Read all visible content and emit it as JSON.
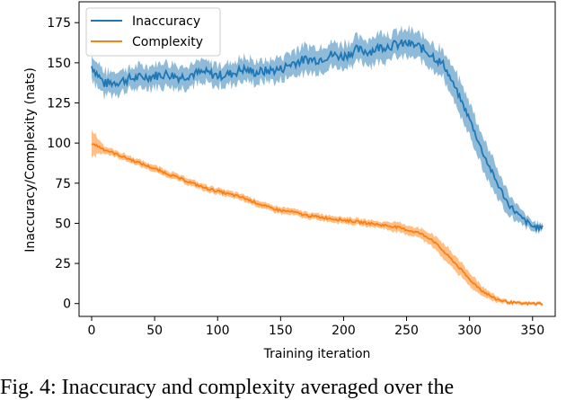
{
  "chart_data": {
    "type": "line",
    "title": "",
    "xlabel": "Training iteration",
    "ylabel": "Inaccuracy/Complexity (nats)",
    "xlim": [
      -10,
      368
    ],
    "ylim": [
      -8,
      188
    ],
    "xticks": [
      0,
      50,
      100,
      150,
      200,
      250,
      300,
      350
    ],
    "yticks": [
      0,
      25,
      50,
      75,
      100,
      125,
      150,
      175
    ],
    "grid": false,
    "legend_position": "top-left",
    "x": [
      0,
      10,
      20,
      30,
      40,
      50,
      60,
      70,
      80,
      90,
      100,
      110,
      120,
      130,
      140,
      150,
      160,
      170,
      180,
      190,
      200,
      210,
      220,
      230,
      240,
      250,
      260,
      270,
      280,
      290,
      300,
      310,
      320,
      330,
      340,
      350,
      358
    ],
    "series": [
      {
        "name": "Inaccuracy",
        "color": "#1f77b4",
        "values": [
          148,
          137,
          138,
          140,
          141,
          142,
          143,
          141,
          143,
          144,
          142,
          143,
          146,
          144,
          145,
          146,
          150,
          152,
          152,
          155,
          154,
          158,
          157,
          160,
          161,
          162,
          160,
          155,
          148,
          132,
          115,
          95,
          78,
          63,
          54,
          48,
          47
        ],
        "spread": [
          8,
          7,
          7,
          7,
          7,
          7,
          7,
          7,
          7,
          7,
          7,
          7,
          7,
          7,
          7,
          7,
          8,
          8,
          8,
          8,
          8,
          8,
          8,
          8,
          8,
          8,
          8,
          8,
          9,
          10,
          10,
          10,
          9,
          7,
          5,
          3,
          2
        ]
      },
      {
        "name": "Complexity",
        "color": "#ff7f0e",
        "values": [
          100,
          96,
          93,
          90,
          87,
          84,
          81,
          78,
          75,
          72,
          70,
          68,
          66,
          63,
          60,
          58,
          57,
          55,
          54,
          53,
          52,
          51,
          50,
          49,
          48,
          46,
          44,
          40,
          32,
          24,
          15,
          8,
          3,
          1,
          0,
          0,
          0
        ],
        "spread": [
          9,
          2,
          2,
          2,
          2,
          2,
          2,
          2,
          2,
          2,
          2,
          2,
          2,
          2,
          2,
          2,
          2,
          2,
          2,
          2,
          2,
          2,
          2,
          2,
          3,
          3,
          3,
          4,
          5,
          5,
          4,
          3,
          2,
          1,
          1,
          1,
          1
        ]
      }
    ]
  },
  "caption": "Fig. 4: Inaccuracy and complexity averaged over the"
}
